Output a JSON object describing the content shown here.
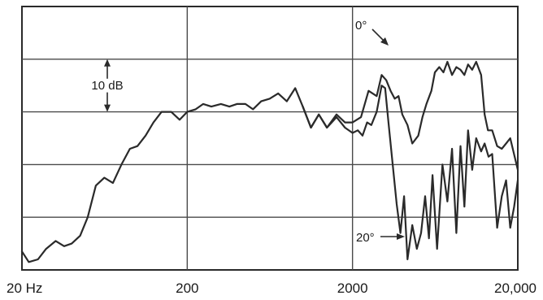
{
  "chart_data": {
    "type": "line",
    "x_scale": "log",
    "xlim": [
      20,
      20000
    ],
    "x_ticks": [
      {
        "value": 20,
        "label": "20 Hz"
      },
      {
        "value": 200,
        "label": "200"
      },
      {
        "value": 2000,
        "label": "2000"
      },
      {
        "value": 20000,
        "label": "20,000"
      }
    ],
    "ylim": [
      -40,
      10
    ],
    "y_grid_step": 10,
    "grid": true,
    "scale_marker": {
      "label": "10 dB",
      "top": 0,
      "bottom": -10
    },
    "series": [
      {
        "name": "0°",
        "annotation": "0°",
        "x": [
          20,
          22,
          25,
          28,
          32,
          36,
          40,
          45,
          50,
          56,
          63,
          71,
          80,
          90,
          100,
          112,
          125,
          140,
          160,
          180,
          200,
          225,
          250,
          280,
          320,
          360,
          400,
          450,
          500,
          560,
          630,
          710,
          800,
          900,
          1000,
          1120,
          1250,
          1400,
          1600,
          1800,
          2000,
          2250,
          2500,
          2800,
          3000,
          3200,
          3400,
          3600,
          3800,
          4000,
          4300,
          4600,
          5000,
          5300,
          5600,
          6000,
          6300,
          6700,
          7100,
          7500,
          8000,
          8500,
          9000,
          9500,
          10000,
          10600,
          11200,
          12000,
          12600,
          13200,
          14000,
          15000,
          16000,
          17000,
          18000,
          20000
        ],
        "y": [
          -36.5,
          -38.5,
          -38,
          -36,
          -34.5,
          -35.5,
          -35,
          -33.5,
          -30,
          -24,
          -22.5,
          -23.5,
          -20,
          -17,
          -16.5,
          -14.5,
          -12,
          -10,
          -10,
          -11.5,
          -10,
          -9.5,
          -8.5,
          -9,
          -8.5,
          -9,
          -8.5,
          -8.5,
          -9.5,
          -8,
          -7.5,
          -6.5,
          -8,
          -5.5,
          -9,
          -13,
          -10.5,
          -13,
          -10.5,
          -12,
          -12,
          -11,
          -6,
          -7,
          -3,
          -4,
          -6,
          -7.5,
          -7,
          -10.5,
          -12.5,
          -16,
          -14.5,
          -11,
          -8.5,
          -6,
          -2.5,
          -1.5,
          -2.5,
          -0.5,
          -3,
          -1.5,
          -2,
          -3,
          -1,
          -2,
          -0.5,
          -3,
          -10.5,
          -13.5,
          -13.5,
          -16.5,
          -17,
          -16,
          -15,
          -21
        ]
      },
      {
        "name": "20°",
        "annotation": "20°",
        "x": [
          1000,
          1120,
          1250,
          1400,
          1600,
          1800,
          2000,
          2150,
          2300,
          2450,
          2600,
          2800,
          3000,
          3150,
          3300,
          3500,
          3700,
          3900,
          4100,
          4300,
          4600,
          4900,
          5200,
          5500,
          5800,
          6100,
          6500,
          7000,
          7500,
          8000,
          8500,
          9000,
          9500,
          10000,
          10600,
          11200,
          12000,
          12600,
          13300,
          14000,
          15000,
          16000,
          17000,
          18000,
          19000,
          20000
        ],
        "y": [
          -9,
          -13,
          -10.5,
          -13,
          -11,
          -13,
          -14,
          -13.5,
          -14.5,
          -12,
          -12.5,
          -10,
          -5,
          -5.5,
          -12,
          -20,
          -27.5,
          -33,
          -26,
          -38,
          -31.5,
          -36,
          -33,
          -26,
          -34,
          -22,
          -36,
          -20,
          -27,
          -17,
          -33,
          -16.5,
          -28,
          -13.5,
          -21,
          -15,
          -17.5,
          -16,
          -18.5,
          -18,
          -32,
          -26,
          -23,
          -32,
          -28,
          -23
        ]
      }
    ]
  }
}
